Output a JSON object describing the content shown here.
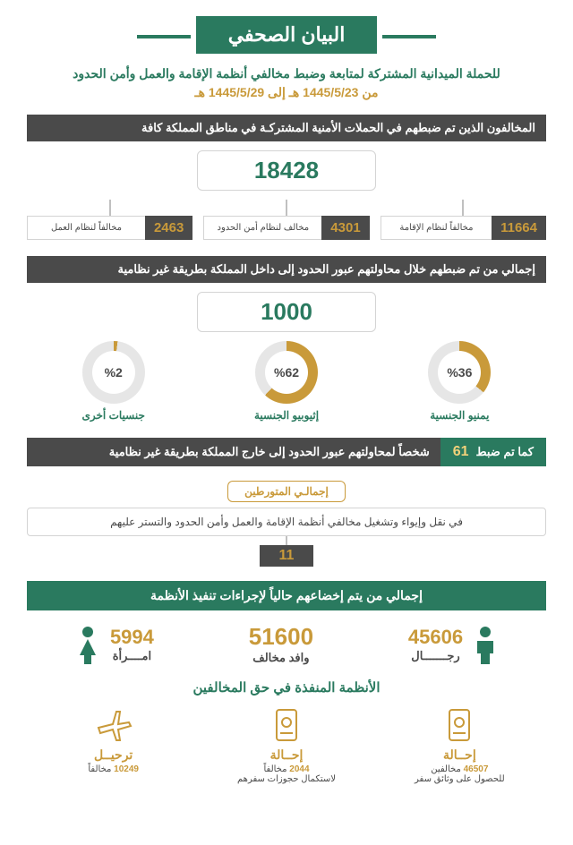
{
  "colors": {
    "green": "#2a7a5f",
    "dark": "#4a4a4a",
    "gold": "#c99a3a",
    "light_gold": "#f2d17a",
    "border": "#d4d4d4",
    "donut_track": "#e6e6e6"
  },
  "title": "البيان الصحفي",
  "subtitle": "للحملة الميدانية المشتركة لمتابعة وضبط مخالفي أنظمة الإقامة والعمل وأمن الحدود",
  "dates": "من 1445/5/23 هـ إلى 1445/5/29 هـ",
  "section1": {
    "header": "المخالفون الذين تم ضبطهم في الحملات الأمنية المشتركـة في مناطق المملكة كافة",
    "total": "18428",
    "items": [
      {
        "num": "11664",
        "label": "مخالفاً لنظام الإقامة"
      },
      {
        "num": "4301",
        "label": "مخالف لنظام أمن الحدود"
      },
      {
        "num": "2463",
        "label": "مخالفاً لنظام العمل"
      }
    ]
  },
  "section2": {
    "header": "إجمالي من تم ضبطهم خلال محاولتهم عبور الحدود إلى داخل المملكة بطريقة غير نظامية",
    "total": "1000",
    "donuts": [
      {
        "pct": 36,
        "pct_label": "%36",
        "label": "يمنيو الجنسية"
      },
      {
        "pct": 62,
        "pct_label": "%62",
        "label": "إثيوبيو الجنسية"
      },
      {
        "pct": 2,
        "pct_label": "%2",
        "label": "جنسيات أخرى"
      }
    ]
  },
  "outgoing": {
    "prefix": "كما تم ضبط",
    "num": "61",
    "text": "شخصاً لمحاولتهم عبور الحدود إلى خارج المملكة بطريقة غير نظامية"
  },
  "involved": {
    "title": "إجمالـي المتورطين",
    "desc": "في نقل وإيواء وتشغيل مخالفي أنظمة الإقامة والعمل وأمن الحدود والتستر عليهم",
    "num": "11"
  },
  "enforcement_header": "إجمالي من يتم إخضاعهم حالياً لإجراءات تنفيذ الأنظمة",
  "gender": {
    "men": {
      "num": "45606",
      "label": "رجـــــــال"
    },
    "total": {
      "num": "51600",
      "label": "وافد مخالف"
    },
    "women": {
      "num": "5994",
      "label": "امــــرأة"
    }
  },
  "actions": {
    "title": "الأنظمة المنفذة في حق المخالفين",
    "items": [
      {
        "label": "إحــالة",
        "num": "46507",
        "sub": "مخالفين\nللحصول على وثائق سفر",
        "icon": "passport"
      },
      {
        "label": "إحــالة",
        "num": "2044",
        "sub": "مخالفاً\nلاستكمال حجوزات سفرهم",
        "icon": "passport"
      },
      {
        "label": "ترحيــل",
        "num": "10249",
        "sub": "مخالفاً",
        "icon": "plane"
      }
    ]
  }
}
